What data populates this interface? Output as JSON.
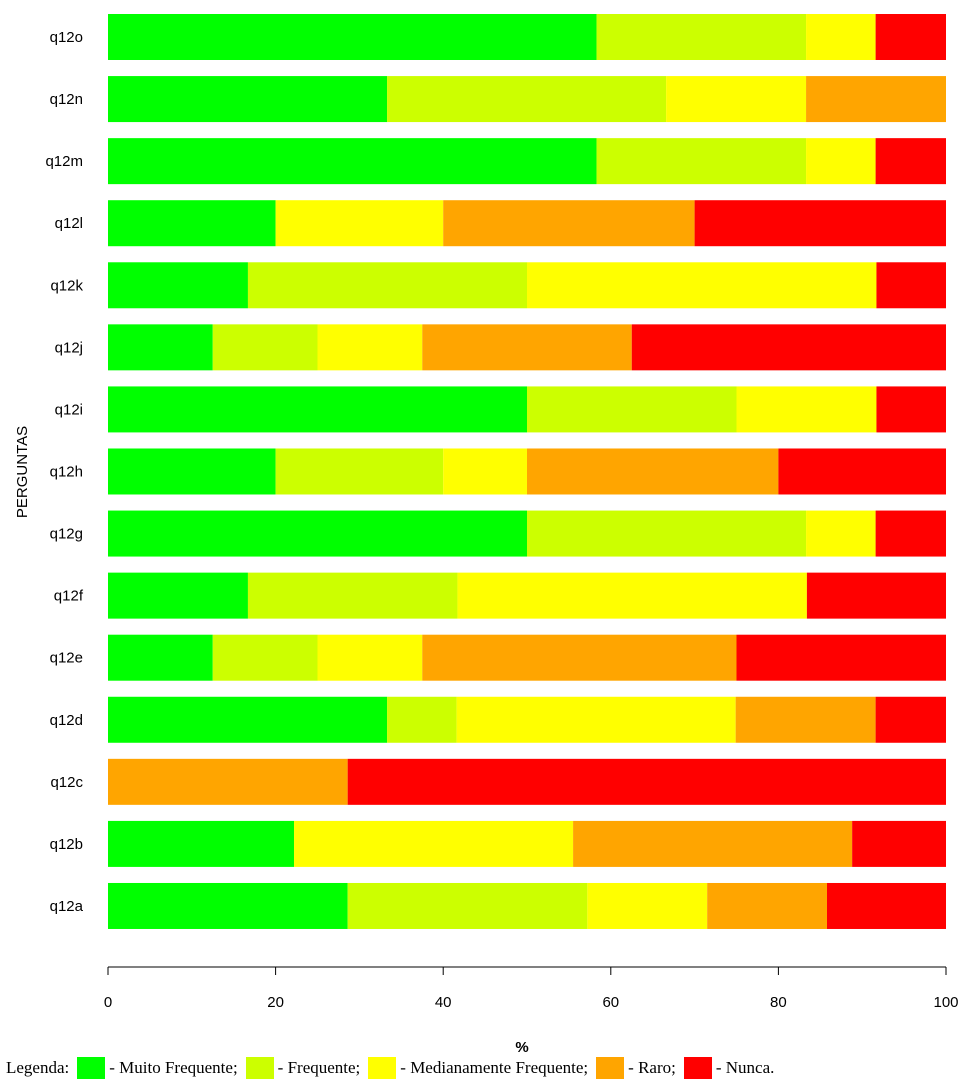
{
  "chart_data": {
    "type": "bar",
    "orientation": "horizontal",
    "stacked": true,
    "xlabel": "%",
    "ylabel": "PERGUNTAS",
    "xlim": [
      0,
      100
    ],
    "x_ticks": [
      "0",
      "20",
      "40",
      "60",
      "80",
      "100"
    ],
    "grid": false,
    "categories": [
      "q12a",
      "q12b",
      "q12c",
      "q12d",
      "q12e",
      "q12f",
      "q12g",
      "q12h",
      "q12i",
      "q12j",
      "q12k",
      "q12l",
      "q12m",
      "q12n",
      "q12o"
    ],
    "series": [
      {
        "name": "- Muito Frequente;",
        "color": "#00FF00",
        "values": [
          28.6,
          22.2,
          0,
          33.3,
          12.5,
          16.7,
          50,
          20,
          50,
          12.5,
          16.7,
          20,
          58.3,
          33.3,
          58.3
        ]
      },
      {
        "name": "- Frequente;",
        "color": "#CCFF00",
        "values": [
          28.6,
          0,
          0,
          8.3,
          12.5,
          25,
          33.3,
          20,
          25,
          12.5,
          33.3,
          0,
          25,
          33.3,
          25
        ]
      },
      {
        "name": "- Medianamente Frequente;",
        "color": "#FFFF00",
        "values": [
          14.3,
          33.3,
          0,
          33.3,
          12.5,
          41.7,
          8.3,
          10,
          16.7,
          12.5,
          41.7,
          20,
          8.3,
          16.7,
          8.3
        ]
      },
      {
        "name": "- Raro;",
        "color": "#FFA500",
        "values": [
          14.3,
          33.3,
          28.6,
          16.7,
          37.5,
          0,
          0,
          30,
          0,
          25,
          0,
          30,
          0,
          16.7,
          0
        ]
      },
      {
        "name": "- Nunca.",
        "color": "#FF0000",
        "values": [
          14.2,
          11.2,
          71.4,
          8.4,
          25,
          16.6,
          8.4,
          20,
          8.3,
          37.5,
          8.3,
          30,
          8.4,
          0,
          8.4
        ]
      }
    ]
  },
  "legend": {
    "prefix": "Legenda:"
  }
}
